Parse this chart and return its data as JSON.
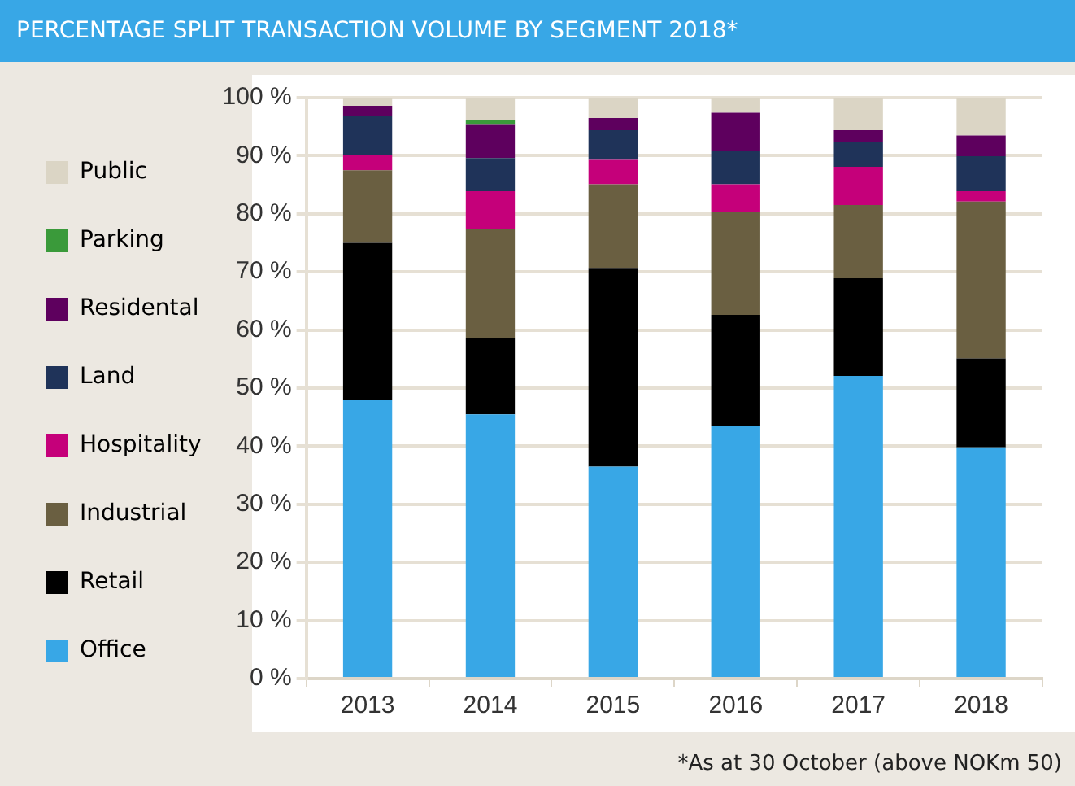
{
  "chart_data": {
    "type": "bar",
    "title": "PERCENTAGE SPLIT TRANSACTION VOLUME BY SEGMENT 2018*",
    "categories": [
      "2013",
      "2014",
      "2015",
      "2016",
      "2017",
      "2018"
    ],
    "stacked": true,
    "series": [
      {
        "name": "Office",
        "color": "#38a7e6",
        "values": [
          48,
          45.5,
          36.5,
          43.4,
          52.1,
          39.8
        ]
      },
      {
        "name": "Retail",
        "color": "#000000",
        "values": [
          27,
          13.2,
          34.2,
          19.2,
          16.8,
          15.3
        ]
      },
      {
        "name": "Industrial",
        "color": "#6a5f41",
        "values": [
          12.5,
          18.6,
          14.4,
          17.7,
          12.6,
          27
        ]
      },
      {
        "name": "Hospitality",
        "color": "#c5007a",
        "values": [
          2.7,
          6.6,
          4.2,
          4.8,
          6.6,
          1.8
        ]
      },
      {
        "name": "Land",
        "color": "#1f3359",
        "values": [
          6.6,
          5.7,
          5.1,
          5.7,
          4.2,
          6
        ]
      },
      {
        "name": "Residental",
        "color": "#5e005e",
        "values": [
          1.8,
          5.7,
          2.1,
          6.6,
          2.1,
          3.6
        ]
      },
      {
        "name": "Parking",
        "color": "#3a9a3a",
        "values": [
          0,
          0.9,
          0,
          0,
          0,
          0
        ]
      },
      {
        "name": "Public",
        "color": "#dbd5c5",
        "values": [
          1.4,
          3.8,
          3.5,
          2.6,
          5.6,
          6.5
        ]
      }
    ],
    "ylim": [
      0,
      100
    ],
    "yticks": [
      {
        "value": 0,
        "label": "0 %"
      },
      {
        "value": 10,
        "label": "10 %"
      },
      {
        "value": 20,
        "label": "20 %"
      },
      {
        "value": 30,
        "label": "30 %"
      },
      {
        "value": 40,
        "label": "40 %"
      },
      {
        "value": 50,
        "label": "50 %"
      },
      {
        "value": 60,
        "label": "60 %"
      },
      {
        "value": 70,
        "label": "70 %"
      },
      {
        "value": 80,
        "label": "80 %"
      },
      {
        "value": 90,
        "label": "90 %"
      },
      {
        "value": 100,
        "label": "100 %"
      }
    ],
    "grid": "y",
    "legend": "left",
    "annotations": [
      "*As at 30 October (above NOKm 50)"
    ]
  }
}
